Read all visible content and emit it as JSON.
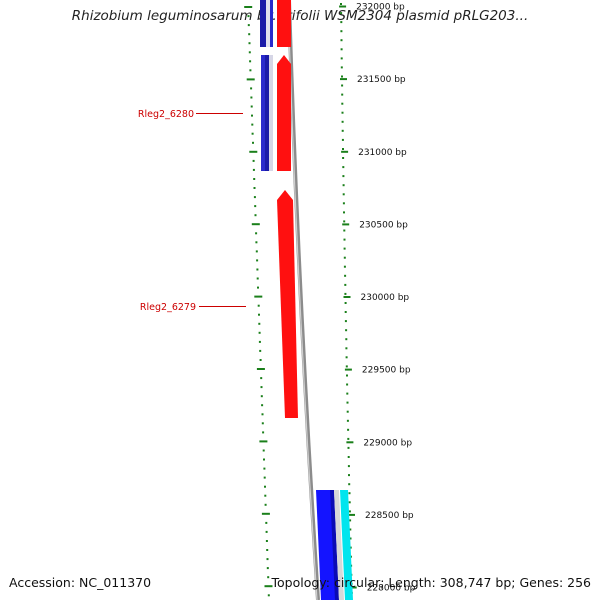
{
  "title": "Rhizobium leguminosarum bv. trifolii WSM2304 plasmid pRLG203...",
  "accession_text": "Accession: NC_011370",
  "summary_text": "Topology: circular; Length: 308,747 bp; Genes: 256",
  "colors": {
    "backbone": "#8c8c8c",
    "tick": "#1a7f1a",
    "forward_gene": "#ff0000",
    "reverse_gene_dark": "#1a1aa8",
    "reverse_gene": "#1414ff",
    "orf": "#00e5ee",
    "label": "#cc0000"
  },
  "scale_labels": [
    {
      "bp": 232000,
      "text": "232000 bp"
    },
    {
      "bp": 231500,
      "text": "231500 bp"
    },
    {
      "bp": 231000,
      "text": "231000 bp"
    },
    {
      "bp": 230500,
      "text": "230500 bp"
    },
    {
      "bp": 230000,
      "text": "230000 bp"
    },
    {
      "bp": 229500,
      "text": "229500 bp"
    },
    {
      "bp": 229000,
      "text": "229000 bp"
    },
    {
      "bp": 228500,
      "text": "228500 bp"
    },
    {
      "bp": 228000,
      "text": "228000 bp"
    }
  ],
  "gene_labels": [
    {
      "text": "Rleg2_6280"
    },
    {
      "text": "Rleg2_6279"
    }
  ]
}
